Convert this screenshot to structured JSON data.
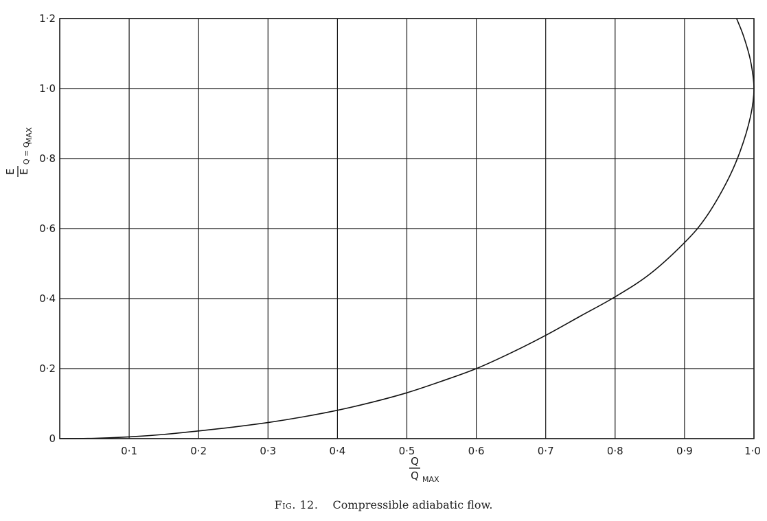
{
  "chart_data": {
    "type": "line",
    "caption_prefix": "Fig. 12.",
    "caption_text": "Compressible adiabatic flow.",
    "xlabel": {
      "numerator": "Q",
      "denominator": "Q",
      "subscript": "MAX"
    },
    "ylabel": {
      "numerator": "E",
      "denominator": "E",
      "subscript": "Q = Q",
      "subscript_sub": "MAX"
    },
    "xlim": [
      0,
      1.0
    ],
    "ylim": [
      0,
      1.2
    ],
    "x_ticks": [
      {
        "value": 0.1,
        "label": "0·1"
      },
      {
        "value": 0.2,
        "label": "0·2"
      },
      {
        "value": 0.3,
        "label": "0·3"
      },
      {
        "value": 0.4,
        "label": "0·4"
      },
      {
        "value": 0.5,
        "label": "0·5"
      },
      {
        "value": 0.6,
        "label": "0·6"
      },
      {
        "value": 0.7,
        "label": "0·7"
      },
      {
        "value": 0.8,
        "label": "0·8"
      },
      {
        "value": 0.9,
        "label": "0·9"
      },
      {
        "value": 1.0,
        "label": "1·0"
      }
    ],
    "y_ticks": [
      {
        "value": 0,
        "label": "0"
      },
      {
        "value": 0.2,
        "label": "0·2"
      },
      {
        "value": 0.4,
        "label": "0·4"
      },
      {
        "value": 0.6,
        "label": "0·6"
      },
      {
        "value": 0.8,
        "label": "0·8"
      },
      {
        "value": 1.0,
        "label": "1·0"
      },
      {
        "value": 1.2,
        "label": "1·2"
      }
    ],
    "grid": true,
    "series": [
      {
        "points": [
          [
            0.0,
            0.0
          ],
          [
            0.05,
            0.001
          ],
          [
            0.1,
            0.005
          ],
          [
            0.15,
            0.012
          ],
          [
            0.2,
            0.022
          ],
          [
            0.25,
            0.033
          ],
          [
            0.3,
            0.046
          ],
          [
            0.35,
            0.062
          ],
          [
            0.4,
            0.081
          ],
          [
            0.45,
            0.104
          ],
          [
            0.5,
            0.131
          ],
          [
            0.55,
            0.164
          ],
          [
            0.6,
            0.2
          ],
          [
            0.65,
            0.245
          ],
          [
            0.7,
            0.295
          ],
          [
            0.75,
            0.35
          ],
          [
            0.8,
            0.405
          ],
          [
            0.85,
            0.47
          ],
          [
            0.9,
            0.56
          ],
          [
            0.93,
            0.63
          ],
          [
            0.96,
            0.73
          ],
          [
            0.98,
            0.82
          ],
          [
            0.995,
            0.92
          ],
          [
            1.0,
            1.0
          ],
          [
            0.995,
            1.08
          ],
          [
            0.985,
            1.15
          ],
          [
            0.975,
            1.2
          ]
        ]
      }
    ]
  }
}
